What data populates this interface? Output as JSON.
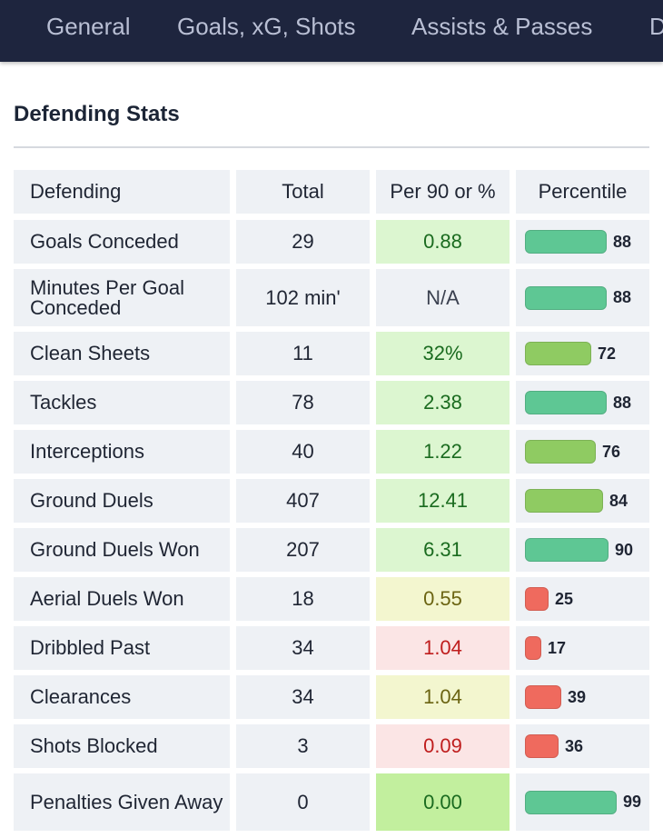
{
  "nav": {
    "tabs": [
      "General",
      "Goals, xG, Shots",
      "Assists & Passes",
      "D"
    ]
  },
  "section": {
    "title": "Defending Stats"
  },
  "table": {
    "headers": [
      "Defending",
      "Total",
      "Per 90 or %",
      "Percentile"
    ],
    "rows": [
      {
        "label": "Goals Conceded",
        "total": "29",
        "per90": "0.88",
        "percentile": "88",
        "per90_tone": "green-light",
        "bar_color": "#5ec794",
        "percentile_value": 88
      },
      {
        "label": "Minutes Per Goal Conceded",
        "total": "102 min'",
        "per90": "N/A",
        "percentile": "88",
        "per90_tone": "none",
        "bar_color": "#5ec794",
        "percentile_value": 88
      },
      {
        "label": "Clean Sheets",
        "total": "11",
        "per90": "32%",
        "percentile": "72",
        "per90_tone": "green-light",
        "bar_color": "#8fcb62",
        "percentile_value": 72
      },
      {
        "label": "Tackles",
        "total": "78",
        "per90": "2.38",
        "percentile": "88",
        "per90_tone": "green-light",
        "bar_color": "#5ec794",
        "percentile_value": 88
      },
      {
        "label": "Interceptions",
        "total": "40",
        "per90": "1.22",
        "percentile": "76",
        "per90_tone": "green-light",
        "bar_color": "#8fcb62",
        "percentile_value": 76
      },
      {
        "label": "Ground Duels",
        "total": "407",
        "per90": "12.41",
        "percentile": "84",
        "per90_tone": "green-light",
        "bar_color": "#8fcb62",
        "percentile_value": 84
      },
      {
        "label": "Ground Duels Won",
        "total": "207",
        "per90": "6.31",
        "percentile": "90",
        "per90_tone": "green-light",
        "bar_color": "#5ec794",
        "percentile_value": 90
      },
      {
        "label": "Aerial Duels Won",
        "total": "18",
        "per90": "0.55",
        "percentile": "25",
        "per90_tone": "yellow",
        "bar_color": "#ef6a5e",
        "percentile_value": 25
      },
      {
        "label": "Dribbled Past",
        "total": "34",
        "per90": "1.04",
        "percentile": "17",
        "per90_tone": "red",
        "bar_color": "#ef6a5e",
        "percentile_value": 17
      },
      {
        "label": "Clearances",
        "total": "34",
        "per90": "1.04",
        "percentile": "39",
        "per90_tone": "yellow",
        "bar_color": "#ef6a5e",
        "percentile_value": 39
      },
      {
        "label": "Shots Blocked",
        "total": "3",
        "per90": "0.09",
        "percentile": "36",
        "per90_tone": "red",
        "bar_color": "#ef6a5e",
        "percentile_value": 36
      },
      {
        "label": "Penalties Given Away",
        "total": "0",
        "per90": "0.00",
        "percentile": "99",
        "per90_tone": "green-strong",
        "bar_color": "#5ec794",
        "percentile_value": 99
      }
    ]
  }
}
